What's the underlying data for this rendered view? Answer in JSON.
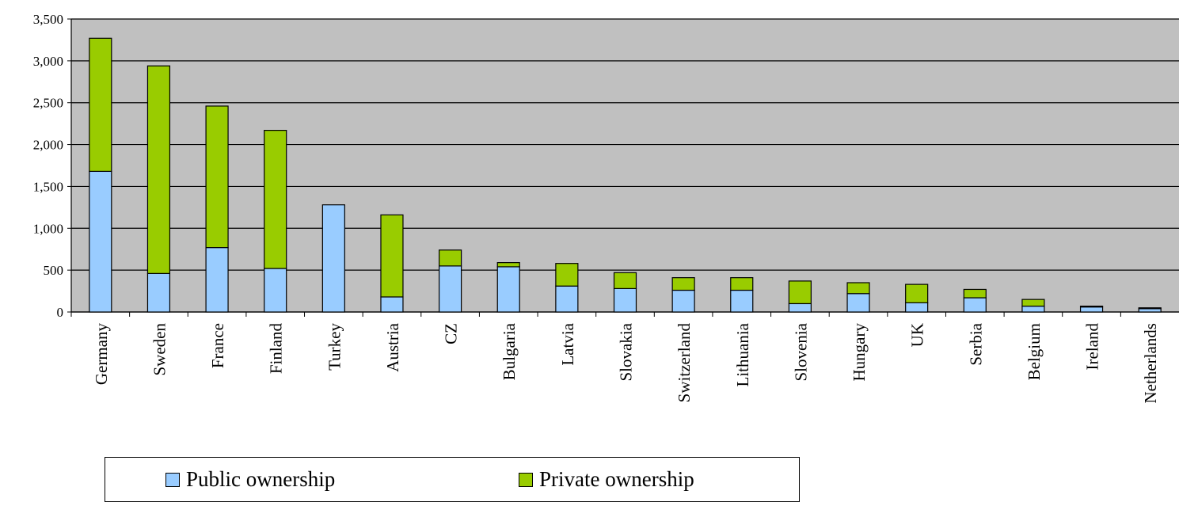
{
  "chart_data": {
    "type": "bar",
    "stacked": true,
    "categories": [
      "Germany",
      "Sweden",
      "France",
      "Finland",
      "Turkey",
      "Austria",
      "CZ",
      "Bulgaria",
      "Latvia",
      "Slovakia",
      "Switzerland",
      "Lithuania",
      "Slovenia",
      "Hungary",
      "UK",
      "Serbia",
      "Belgium",
      "Ireland",
      "Netherlands"
    ],
    "series": [
      {
        "name": "Public ownership",
        "color": "#99ccff",
        "values": [
          1680,
          460,
          770,
          520,
          1280,
          180,
          550,
          540,
          310,
          280,
          260,
          260,
          100,
          220,
          110,
          170,
          70,
          60,
          40
        ]
      },
      {
        "name": "Private ownership",
        "color": "#99cc00",
        "values": [
          1590,
          2480,
          1690,
          1650,
          0,
          980,
          190,
          50,
          270,
          190,
          150,
          150,
          270,
          130,
          220,
          100,
          80,
          10,
          10
        ]
      }
    ],
    "ylim": [
      0,
      3500
    ],
    "yticks": [
      0,
      500,
      1000,
      1500,
      2000,
      2500,
      3000,
      3500
    ],
    "ytick_labels": [
      "0",
      "500",
      "1,000",
      "1,500",
      "2,000",
      "2,500",
      "3,000",
      "3,500"
    ],
    "plot_background": "#c0c0c0",
    "grid": true,
    "legend_position": "bottom-left"
  }
}
